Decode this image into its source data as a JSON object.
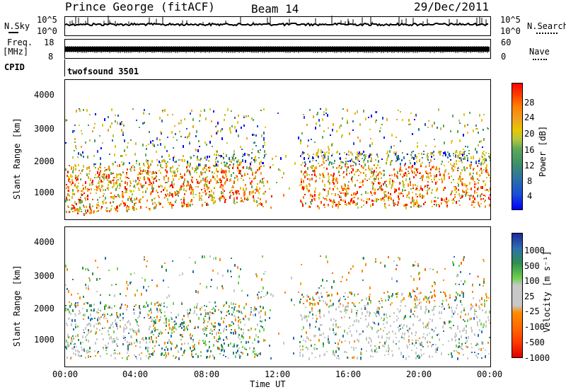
{
  "header": {
    "station": "Prince George (fitACF)",
    "beam": "Beam 14",
    "date": "29/Dec/2011"
  },
  "top_strips": {
    "nsky_label": "N.Sky",
    "nsky_ticks": [
      "10^5",
      "10^0"
    ],
    "nsearch_label": "N.Search",
    "nsearch_ticks": [
      "10^5",
      "10^0"
    ],
    "freq_label_line1": "Freq.",
    "freq_label_line2": "[MHz]",
    "freq_ticks": [
      "18",
      "8"
    ],
    "nave_label": "Nave",
    "nave_ticks": [
      "60",
      "0"
    ],
    "cpid_label": "CPID",
    "cpid_value": "twofsound 3501"
  },
  "chart_data": [
    {
      "type": "heatmap",
      "name": "power",
      "ylabel": "Slant Range [km]",
      "yticks": [
        1000,
        2000,
        3000,
        4000
      ],
      "ylim": [
        200,
        4600
      ],
      "xlim_hours": [
        0,
        24
      ],
      "colorbar": {
        "label": "Power [dB]",
        "ticks": [
          "4",
          "8",
          "12",
          "16",
          "20",
          "24",
          "28"
        ],
        "colors": [
          "#0000ff",
          "#1a4fd6",
          "#2e6fa8",
          "#3f8f6a",
          "#5fa85a",
          "#b7c740",
          "#e6c800",
          "#f0a020",
          "#ff7f00",
          "#ff4500",
          "#ff0000"
        ]
      }
    },
    {
      "type": "heatmap",
      "name": "velocity",
      "ylabel": "Slant Range [km]",
      "yticks": [
        1000,
        2000,
        3000,
        4000
      ],
      "ylim": [
        200,
        4600
      ],
      "xlim_hours": [
        0,
        24
      ],
      "colorbar": {
        "label": "Velocity [m s⁻¹]",
        "ticks": [
          "1000",
          "500",
          "100",
          "25",
          "-25",
          "-100",
          "-500",
          "-1000"
        ],
        "colors": [
          "#1c2a9c",
          "#2f6fb0",
          "#2f8f4f",
          "#6fd04f",
          "#c8c8c8",
          "#c8c8c8",
          "#ff8c00",
          "#ff6a00",
          "#ff3a00",
          "#e00000"
        ]
      }
    }
  ],
  "xaxis": {
    "ticks": [
      "00:00",
      "04:00",
      "08:00",
      "12:00",
      "16:00",
      "20:00",
      "00:00"
    ],
    "label": "Time UT"
  }
}
